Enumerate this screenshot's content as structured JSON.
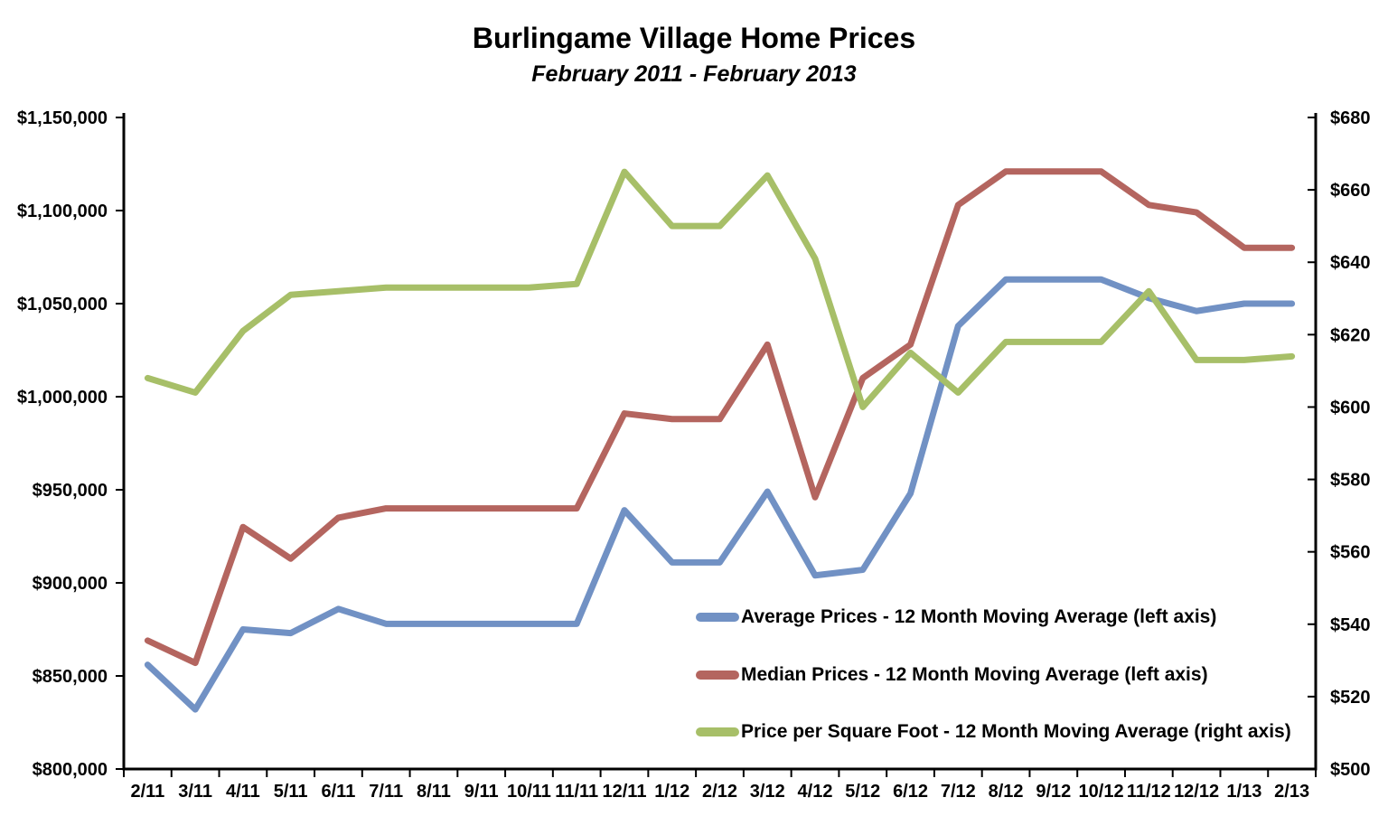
{
  "title": "Burlingame Village Home Prices",
  "subtitle": "February 2011 - February 2013",
  "colors": {
    "average": "#7191C4",
    "median": "#B4655F",
    "ppsf": "#A7BF68",
    "axis": "#000000",
    "background": "#FFFFFF"
  },
  "chart_data": {
    "type": "line",
    "grid": false,
    "legend_position": "inside-bottom-right",
    "categories": [
      "2/11",
      "3/11",
      "4/11",
      "5/11",
      "6/11",
      "7/11",
      "8/11",
      "9/11",
      "10/11",
      "11/11",
      "12/11",
      "1/12",
      "2/12",
      "3/12",
      "4/12",
      "5/12",
      "6/12",
      "7/12",
      "8/12",
      "9/12",
      "10/12",
      "11/12",
      "12/12",
      "1/13",
      "2/13"
    ],
    "series": [
      {
        "key": "average",
        "name": "Average Prices - 12 Month Moving Average (left axis)",
        "axis": "left",
        "color": "#7191C4",
        "values": [
          856000,
          832000,
          875000,
          873000,
          886000,
          878000,
          878000,
          878000,
          878000,
          878000,
          939000,
          911000,
          911000,
          949000,
          904000,
          907000,
          948000,
          1038000,
          1063000,
          1063000,
          1063000,
          1053000,
          1046000,
          1050000,
          1050000
        ]
      },
      {
        "key": "median",
        "name": "Median Prices - 12 Month Moving Average (left axis)",
        "axis": "left",
        "color": "#B4655F",
        "values": [
          869000,
          857000,
          930000,
          913000,
          935000,
          940000,
          940000,
          940000,
          940000,
          940000,
          991000,
          988000,
          988000,
          1028000,
          946000,
          1010000,
          1028000,
          1103000,
          1121000,
          1121000,
          1121000,
          1103000,
          1099000,
          1080000,
          1080000
        ]
      },
      {
        "key": "ppsf",
        "name": "Price per Square Foot - 12 Month Moving Average (right axis)",
        "axis": "right",
        "color": "#A7BF68",
        "values": [
          608,
          604,
          621,
          631,
          632,
          633,
          633,
          633,
          633,
          634,
          665,
          650,
          650,
          664,
          641,
          600,
          615,
          604,
          618,
          618,
          618,
          632,
          613,
          613,
          614
        ]
      }
    ],
    "left_axis": {
      "min": 800000,
      "max": 1150000,
      "step": 50000,
      "tick_labels": [
        "$800,000",
        "$850,000",
        "$900,000",
        "$950,000",
        "$1,000,000",
        "$1,050,000",
        "$1,100,000",
        "$1,150,000"
      ]
    },
    "right_axis": {
      "min": 500,
      "max": 680,
      "step": 20,
      "tick_labels": [
        "$500",
        "$520",
        "$540",
        "$560",
        "$580",
        "$600",
        "$620",
        "$640",
        "$660",
        "$680"
      ]
    }
  }
}
